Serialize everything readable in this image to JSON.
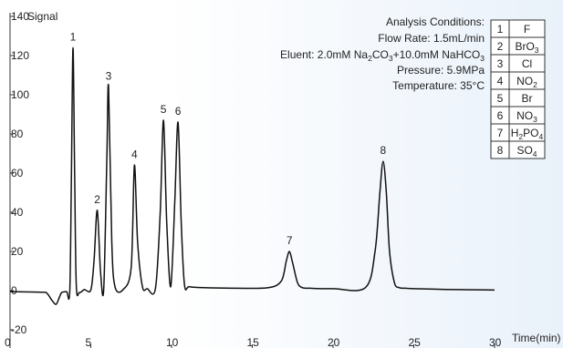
{
  "chart_data": {
    "type": "line",
    "ylabel": "Signal",
    "xlabel": "Time(min)",
    "xlim": [
      0,
      30
    ],
    "ylim": [
      -20,
      140
    ],
    "xticks": [
      "0",
      "5",
      "10",
      "15",
      "20",
      "25",
      "30"
    ],
    "yticks": [
      "-20",
      "0",
      "20",
      "40",
      "60",
      "80",
      "100",
      "120",
      "140"
    ],
    "grid": false,
    "line_color": "#111111",
    "series": [
      {
        "x": [
          0,
          2.0,
          2.3,
          2.6,
          2.85,
          3.05,
          3.2,
          3.5,
          3.7,
          3.8,
          3.9,
          4.0,
          4.1,
          4.3,
          4.6,
          5.0,
          5.2,
          5.4,
          5.6,
          5.8,
          6.0,
          6.1,
          6.3,
          6.5,
          7.0,
          7.5,
          7.7,
          7.9,
          8.2,
          8.5,
          9.0,
          9.3,
          9.5,
          9.7,
          9.95,
          10.2,
          10.4,
          10.6,
          10.8,
          11.1,
          12.0,
          14.0,
          16.0,
          16.8,
          17.1,
          17.3,
          17.5,
          17.8,
          18.1,
          18.6,
          20.0,
          22.0,
          22.6,
          22.9,
          23.1,
          23.3,
          23.5,
          23.8,
          24.1,
          24.5,
          25.0,
          27.0,
          29.0,
          30.0
        ],
        "y": [
          -0.5,
          -0.8,
          -1.5,
          -5,
          -7,
          -3.5,
          -1.0,
          -0.5,
          0,
          60,
          124,
          60,
          3,
          -1.0,
          0.5,
          0.3,
          15,
          41,
          10,
          1,
          70,
          104,
          25,
          2,
          0.5,
          12,
          64,
          25,
          2,
          1.0,
          1.0,
          40,
          87,
          35,
          2.0,
          45,
          86,
          35,
          3,
          2.0,
          1.5,
          1.2,
          1.5,
          5,
          15,
          20,
          14,
          4,
          1.5,
          1.2,
          1.0,
          1.5,
          20,
          50,
          66,
          50,
          20,
          4,
          1.5,
          1.2,
          1.0,
          0.6,
          0.4,
          0.3
        ]
      }
    ],
    "peaks": [
      {
        "label": "1",
        "x": 3.9,
        "y": 124
      },
      {
        "label": "2",
        "x": 5.4,
        "y": 41
      },
      {
        "label": "3",
        "x": 6.1,
        "y": 104
      },
      {
        "label": "4",
        "x": 7.7,
        "y": 64
      },
      {
        "label": "5",
        "x": 9.5,
        "y": 87
      },
      {
        "label": "6",
        "x": 10.4,
        "y": 86
      },
      {
        "label": "7",
        "x": 17.3,
        "y": 20
      },
      {
        "label": "8",
        "x": 23.1,
        "y": 66
      }
    ]
  },
  "conditions": {
    "heading": "Analysis Conditions:",
    "flow_rate": "Flow Rate: 1.5mL/min",
    "eluent": "Eluent: 2.0mM Na2CO3+10.0mM NaHCO3",
    "pressure": "Pressure: 5.9MPa",
    "temperature": "Temperature: 35°C"
  },
  "peak_table": [
    {
      "no": "1",
      "ion": "F"
    },
    {
      "no": "2",
      "ion": "BrO3"
    },
    {
      "no": "3",
      "ion": "Cl"
    },
    {
      "no": "4",
      "ion": "NO2"
    },
    {
      "no": "5",
      "ion": "Br"
    },
    {
      "no": "6",
      "ion": "NO3"
    },
    {
      "no": "7",
      "ion": "H2PO4"
    },
    {
      "no": "8",
      "ion": "SO4"
    }
  ]
}
